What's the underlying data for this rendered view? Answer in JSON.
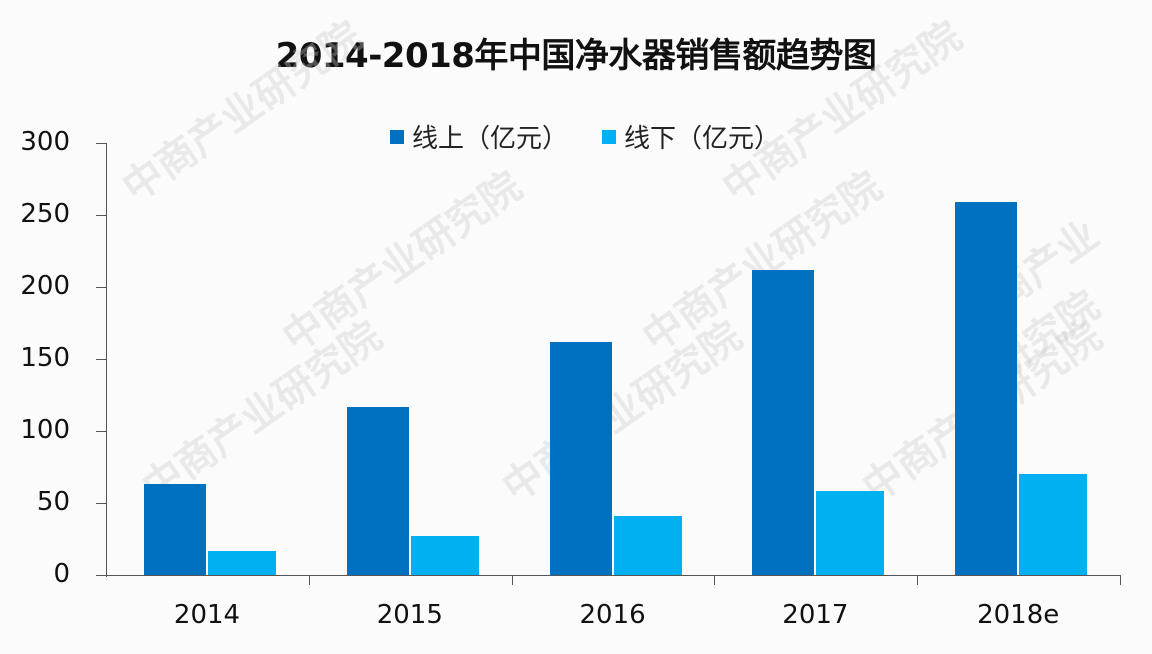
{
  "chart_data": {
    "type": "bar",
    "title": "2014-2018年中国净水器销售额趋势图",
    "xlabel": "",
    "ylabel": "",
    "ylim": [
      0,
      300
    ],
    "yticks": [
      "0",
      "50",
      "100",
      "150",
      "200",
      "250",
      "300"
    ],
    "categories": [
      "2014",
      "2015",
      "2016",
      "2017",
      "2018e"
    ],
    "series": [
      {
        "name": "线上（亿元）",
        "color": "#0070c0",
        "values": [
          63,
          117,
          162,
          212,
          259
        ]
      },
      {
        "name": "线下（亿元）",
        "color": "#00b0f0",
        "values": [
          17,
          27,
          41,
          58,
          70
        ]
      }
    ],
    "legend_position": "top",
    "grid": false
  },
  "watermark": "中商产业研究院 www.askci.com/reports/"
}
